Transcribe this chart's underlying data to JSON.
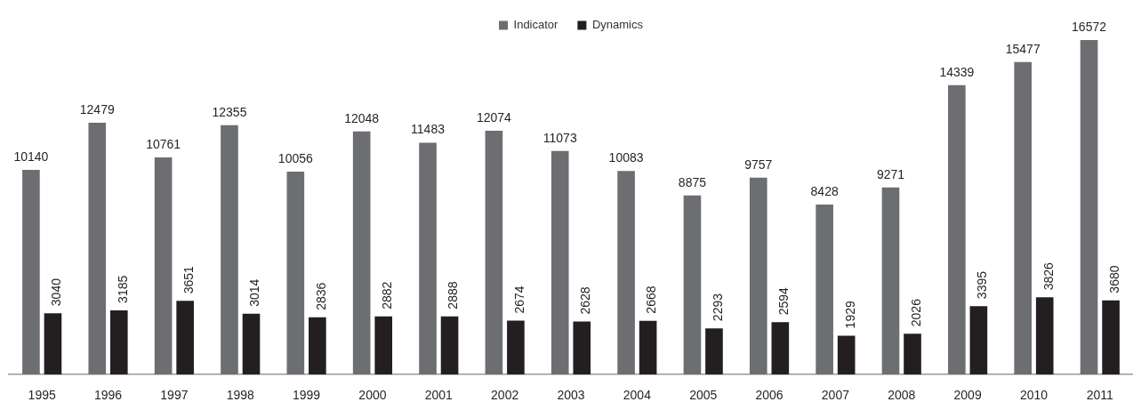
{
  "chart_data": {
    "type": "bar",
    "categories": [
      "1995",
      "1996",
      "1997",
      "1998",
      "1999",
      "2000",
      "2001",
      "2002",
      "2003",
      "2004",
      "2005",
      "2006",
      "2007",
      "2008",
      "2009",
      "2010",
      "2011"
    ],
    "series": [
      {
        "name": "Indicator",
        "color": "#6d6e72",
        "values": [
          10140,
          12479,
          10761,
          12355,
          10056,
          12048,
          11483,
          12074,
          11073,
          10083,
          8875,
          9757,
          8428,
          9271,
          14339,
          15477,
          16572
        ]
      },
      {
        "name": "Dynamics",
        "color": "#231f20",
        "values": [
          3040,
          3185,
          3651,
          3014,
          2836,
          2882,
          2888,
          2674,
          2628,
          2668,
          2293,
          2594,
          1929,
          2026,
          3395,
          3826,
          3680
        ]
      }
    ],
    "data_labels": true,
    "legend": "top",
    "grid": false
  }
}
